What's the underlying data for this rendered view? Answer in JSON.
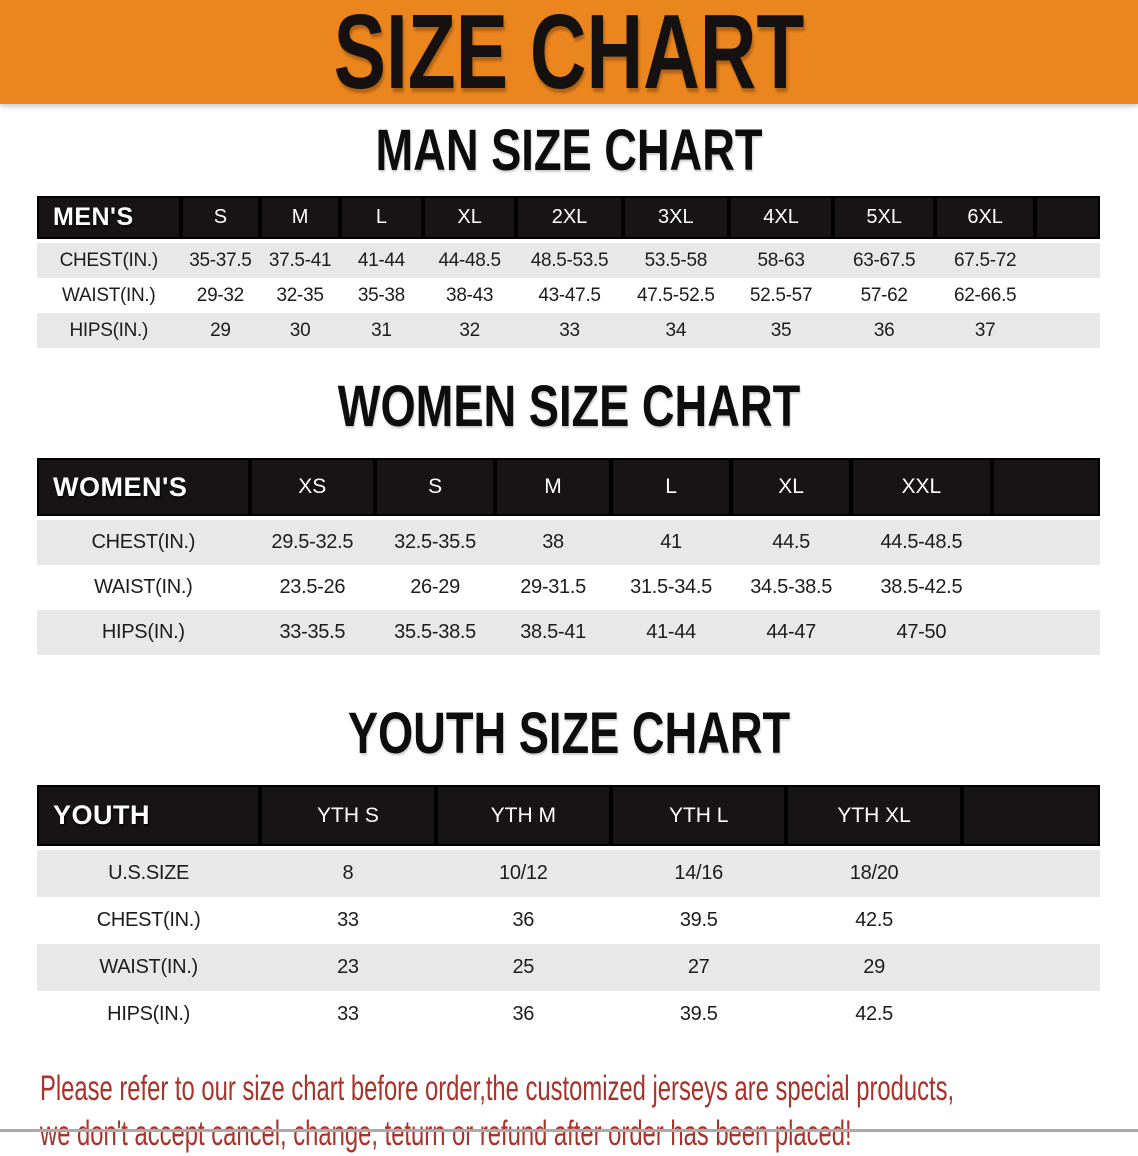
{
  "banner": {
    "title": "SIZE CHART"
  },
  "colors": {
    "banner_orange": "#EB861E",
    "disclaimer_red": "#A93229",
    "header_black": "#181415",
    "row_gray": "#E8E8E8"
  },
  "sections": [
    {
      "heading": "MAN SIZE CHART",
      "table": {
        "header_label": "MEN'S",
        "columns": [
          "S",
          "M",
          "L",
          "XL",
          "2XL",
          "3XL",
          "4XL",
          "5XL",
          "6XL"
        ],
        "rows": [
          {
            "label": "CHEST(IN.)",
            "values": [
              "35-37.5",
              "37.5-41",
              "41-44",
              "44-48.5",
              "48.5-53.5",
              "53.5-58",
              "58-63",
              "63-67.5",
              "67.5-72"
            ]
          },
          {
            "label": "WAIST(IN.)",
            "values": [
              "29-32",
              "32-35",
              "35-38",
              "38-43",
              "43-47.5",
              "47.5-52.5",
              "52.5-57",
              "57-62",
              "62-66.5"
            ]
          },
          {
            "label": "HIPS(IN.)",
            "values": [
              "29",
              "30",
              "31",
              "32",
              "33",
              "34",
              "35",
              "36",
              "37"
            ]
          }
        ]
      }
    },
    {
      "heading": "WOMEN SIZE CHART",
      "table": {
        "header_label": "WOMEN'S",
        "columns": [
          "XS",
          "S",
          "M",
          "L",
          "XL",
          "XXL"
        ],
        "rows": [
          {
            "label": "CHEST(IN.)",
            "values": [
              "29.5-32.5",
              "32.5-35.5",
              "38",
              "41",
              "44.5",
              "44.5-48.5"
            ]
          },
          {
            "label": "WAIST(IN.)",
            "values": [
              "23.5-26",
              "26-29",
              "29-31.5",
              "31.5-34.5",
              "34.5-38.5",
              "38.5-42.5"
            ]
          },
          {
            "label": "HIPS(IN.)",
            "values": [
              "33-35.5",
              "35.5-38.5",
              "38.5-41",
              "41-44",
              "44-47",
              "47-50"
            ]
          }
        ]
      }
    },
    {
      "heading": "YOUTH SIZE CHART",
      "table": {
        "header_label": "YOUTH",
        "columns": [
          "YTH S",
          "YTH M",
          "YTH L",
          "YTH XL"
        ],
        "rows": [
          {
            "label": "U.S.SIZE",
            "values": [
              "8",
              "10/12",
              "14/16",
              "18/20"
            ]
          },
          {
            "label": "CHEST(IN.)",
            "values": [
              "33",
              "36",
              "39.5",
              "42.5"
            ]
          },
          {
            "label": "WAIST(IN.)",
            "values": [
              "23",
              "25",
              "27",
              "29"
            ]
          },
          {
            "label": "HIPS(IN.)",
            "values": [
              "33",
              "36",
              "39.5",
              "42.5"
            ]
          }
        ]
      }
    }
  ],
  "disclaimer": {
    "line1": "Please refer to our size chart before order,the customized jerseys are special products,",
    "line2": "we don't accept cancel, change, teturn or refund after order has been placed!"
  }
}
